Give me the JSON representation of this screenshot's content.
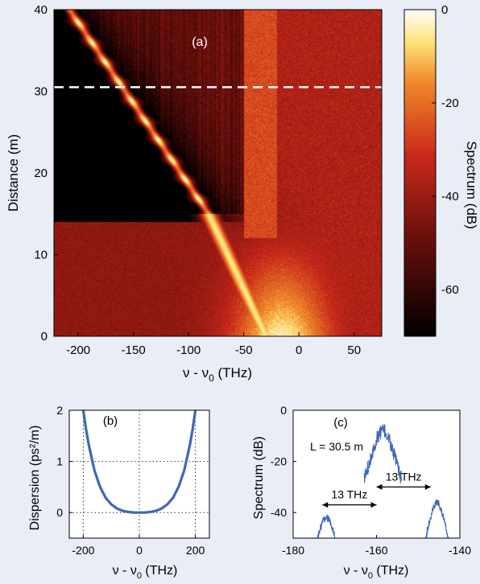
{
  "background_color": "#e9edf5",
  "colors": {
    "curve": "#3f66b8",
    "hot_low": "#000000",
    "hot_mid": "#c8281a",
    "hot_high": "#ffe27a",
    "hot_top": "#ffffff"
  },
  "chart_data": [
    {
      "id": "a",
      "type": "heatmap",
      "panel_label": "(a)",
      "xlabel": "ν - ν",
      "xlabel_sub": "0",
      "xlabel_unit": " (THz)",
      "ylabel": "Distance (m)",
      "xlim": [
        -222,
        75
      ],
      "ylim": [
        0,
        40
      ],
      "xticks": [
        -200,
        -150,
        -100,
        -50,
        0,
        50
      ],
      "yticks": [
        0,
        10,
        20,
        30,
        40
      ],
      "colorbar": {
        "label": "Spectrum (dB)",
        "range": [
          -70,
          0
        ],
        "ticks": [
          0,
          -20,
          -40,
          -60
        ]
      },
      "soliton_track": {
        "start": [
          -208,
          40
        ],
        "end": [
          -82,
          15
        ],
        "period_m": 2.4
      },
      "dashed_line_distance": 30.5
    },
    {
      "id": "b",
      "type": "line",
      "panel_label": "(b)",
      "xlabel": "ν - ν",
      "xlabel_sub": "0",
      "xlabel_unit": " (THz)",
      "ylabel": "Dispersion (ps²/m)",
      "xlim": [
        -250,
        250
      ],
      "ylim": [
        -0.5,
        2
      ],
      "xticks": [
        -200,
        0,
        200
      ],
      "yticks": [
        0,
        1,
        2
      ],
      "grid_x": [
        -200,
        0,
        200
      ],
      "grid_y": [
        0,
        1
      ],
      "series": [
        {
          "x": [
            -200,
            -190,
            -180,
            -160,
            -140,
            -120,
            -100,
            -80,
            -60,
            -40,
            -20,
            0,
            20,
            40,
            60,
            80,
            100,
            120,
            140,
            160,
            180,
            190,
            200
          ],
          "y": [
            2.0,
            1.62,
            1.31,
            0.82,
            0.5,
            0.29,
            0.16,
            0.08,
            0.035,
            0.012,
            0.002,
            0.0,
            0.002,
            0.012,
            0.035,
            0.08,
            0.16,
            0.29,
            0.5,
            0.82,
            1.31,
            1.62,
            2.0
          ]
        }
      ]
    },
    {
      "id": "c",
      "type": "line",
      "panel_label": "(c)",
      "annotation": "L = 30.5 m",
      "xlabel": "ν - ν",
      "xlabel_sub": "0",
      "xlabel_unit": " (THz)",
      "ylabel": "Spectrum (dB)",
      "xlim": [
        -180,
        -140
      ],
      "ylim": [
        -50,
        0
      ],
      "xticks": [
        -180,
        -160,
        -140
      ],
      "yticks": [
        0,
        -20,
        -40
      ],
      "arrows": [
        {
          "label": "13 THz",
          "x1": -173,
          "x2": -160,
          "y": -37
        },
        {
          "label": "13 THz",
          "x1": -160,
          "x2": -147,
          "y": -30
        }
      ],
      "peaks": [
        {
          "center": -158.5,
          "peak_db": -8,
          "width": 1.7,
          "floor_left": -163,
          "floor_right": -154
        },
        {
          "center": -172,
          "peak_db": -42,
          "width": 1.5,
          "floor_left": -175.5,
          "floor_right": -168.5
        },
        {
          "center": -145.5,
          "peak_db": -36,
          "width": 1.3,
          "floor_left": -148.5,
          "floor_right": -141.5
        }
      ]
    }
  ]
}
